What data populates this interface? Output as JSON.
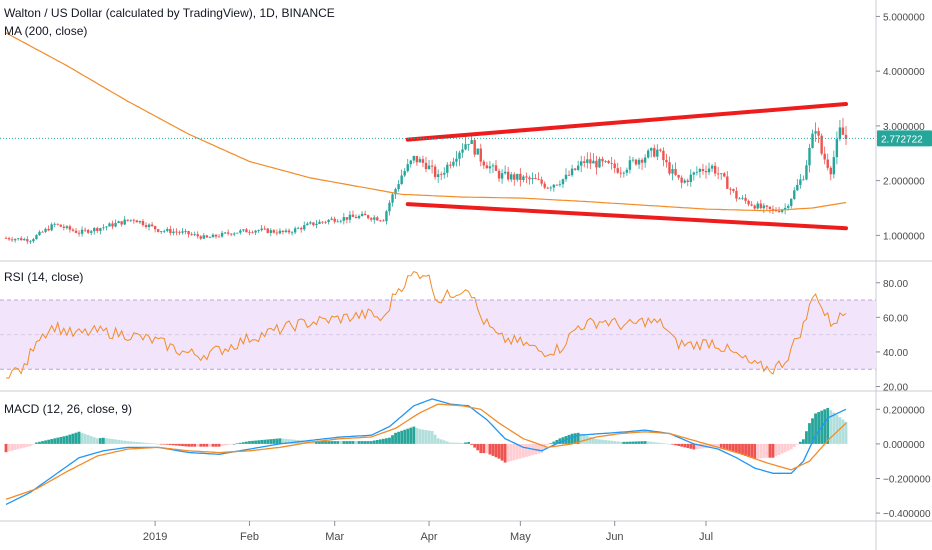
{
  "header": {
    "title": "Walton / US Dollar (calculated by TradingView), 1D, BINANCE",
    "ma_label": "MA (200, close)",
    "rsi_label": "RSI (14, close)",
    "macd_label": "MACD (12, 26, close, 9)"
  },
  "last_price": "2.772722",
  "colors": {
    "up": "#26a69a",
    "down": "#ef5350",
    "ma": "#f28c28",
    "trend": "#ee1c1c",
    "rsi": "#f28c28",
    "rsi_band": "#f1e4fb",
    "macd": "#2196f3",
    "signal": "#f28c28",
    "last_price": "#26a69a"
  },
  "chart_data": [
    {
      "type": "line",
      "panel": "price",
      "y_ticks": [
        "5.000000",
        "4.000000",
        "3.000000",
        "2.000000",
        "1.000000"
      ],
      "ylim": [
        0.55,
        5.3
      ],
      "x_ticks": [
        "2019",
        "Feb",
        "Mar",
        "Apr",
        "May",
        "Jun",
        "Jul"
      ],
      "close_keypoints": [
        [
          0,
          0.95
        ],
        [
          8,
          0.92
        ],
        [
          16,
          1.2
        ],
        [
          24,
          1.05
        ],
        [
          32,
          1.15
        ],
        [
          42,
          1.3
        ],
        [
          50,
          1.1
        ],
        [
          58,
          1.05
        ],
        [
          66,
          0.95
        ],
        [
          74,
          1.05
        ],
        [
          82,
          1.1
        ],
        [
          92,
          1.05
        ],
        [
          100,
          1.2
        ],
        [
          108,
          1.3
        ],
        [
          118,
          1.35
        ],
        [
          124,
          1.3
        ],
        [
          126,
          1.6
        ],
        [
          130,
          2.1
        ],
        [
          134,
          2.4
        ],
        [
          138,
          2.3
        ],
        [
          142,
          2.05
        ],
        [
          148,
          2.5
        ],
        [
          152,
          2.75
        ],
        [
          156,
          2.4
        ],
        [
          162,
          2.1
        ],
        [
          168,
          2.05
        ],
        [
          174,
          2.0
        ],
        [
          178,
          1.9
        ],
        [
          184,
          2.05
        ],
        [
          190,
          2.35
        ],
        [
          196,
          2.3
        ],
        [
          202,
          2.2
        ],
        [
          208,
          2.4
        ],
        [
          214,
          2.55
        ],
        [
          218,
          2.2
        ],
        [
          222,
          1.95
        ],
        [
          228,
          2.2
        ],
        [
          232,
          2.25
        ],
        [
          236,
          2.0
        ],
        [
          240,
          1.7
        ],
        [
          244,
          1.6
        ],
        [
          248,
          1.5
        ],
        [
          252,
          1.45
        ],
        [
          256,
          1.5
        ],
        [
          262,
          2.1
        ],
        [
          266,
          3.0
        ],
        [
          268,
          2.5
        ],
        [
          271,
          2.2
        ],
        [
          274,
          2.9
        ],
        [
          276,
          2.77
        ]
      ],
      "ma200_keypoints": [
        [
          0,
          4.7
        ],
        [
          20,
          4.1
        ],
        [
          40,
          3.45
        ],
        [
          60,
          2.85
        ],
        [
          80,
          2.35
        ],
        [
          100,
          2.05
        ],
        [
          120,
          1.85
        ],
        [
          130,
          1.75
        ],
        [
          150,
          1.7
        ],
        [
          170,
          1.68
        ],
        [
          190,
          1.62
        ],
        [
          210,
          1.55
        ],
        [
          230,
          1.48
        ],
        [
          250,
          1.45
        ],
        [
          265,
          1.5
        ],
        [
          276,
          1.6
        ]
      ],
      "trendlines": [
        {
          "start": [
            132,
            2.75
          ],
          "end": [
            276,
            3.4
          ]
        },
        {
          "start": [
            132,
            1.57
          ],
          "end": [
            276,
            1.13
          ]
        }
      ]
    },
    {
      "type": "line",
      "panel": "rsi",
      "y_ticks": [
        "80.00",
        "60.00",
        "40.00",
        "20.00"
      ],
      "ylim": [
        18,
        92
      ],
      "band": [
        30,
        70
      ],
      "midline": 50,
      "keypoints": [
        [
          0,
          28
        ],
        [
          6,
          30
        ],
        [
          10,
          48
        ],
        [
          16,
          55
        ],
        [
          22,
          50
        ],
        [
          30,
          52
        ],
        [
          40,
          50
        ],
        [
          50,
          46
        ],
        [
          58,
          40
        ],
        [
          64,
          38
        ],
        [
          72,
          42
        ],
        [
          80,
          48
        ],
        [
          88,
          52
        ],
        [
          96,
          56
        ],
        [
          104,
          58
        ],
        [
          112,
          60
        ],
        [
          120,
          62
        ],
        [
          124,
          58
        ],
        [
          128,
          75
        ],
        [
          134,
          85
        ],
        [
          138,
          86
        ],
        [
          142,
          70
        ],
        [
          148,
          75
        ],
        [
          152,
          78
        ],
        [
          156,
          60
        ],
        [
          162,
          48
        ],
        [
          170,
          45
        ],
        [
          176,
          40
        ],
        [
          182,
          42
        ],
        [
          188,
          55
        ],
        [
          196,
          58
        ],
        [
          204,
          55
        ],
        [
          210,
          58
        ],
        [
          216,
          56
        ],
        [
          220,
          45
        ],
        [
          226,
          44
        ],
        [
          232,
          46
        ],
        [
          240,
          38
        ],
        [
          246,
          32
        ],
        [
          252,
          30
        ],
        [
          256,
          35
        ],
        [
          262,
          55
        ],
        [
          266,
          76
        ],
        [
          268,
          65
        ],
        [
          271,
          57
        ],
        [
          274,
          60
        ],
        [
          276,
          63
        ]
      ]
    },
    {
      "type": "line",
      "panel": "macd",
      "y_ticks": [
        "0.200000",
        "0.000000",
        "−0.200000",
        "−0.400000"
      ],
      "ylim": [
        -0.44,
        0.3
      ],
      "macd_keypoints": [
        [
          0,
          -0.35
        ],
        [
          8,
          -0.28
        ],
        [
          16,
          -0.18
        ],
        [
          24,
          -0.08
        ],
        [
          32,
          -0.04
        ],
        [
          40,
          -0.02
        ],
        [
          50,
          -0.02
        ],
        [
          60,
          -0.05
        ],
        [
          70,
          -0.06
        ],
        [
          80,
          -0.03
        ],
        [
          90,
          0.0
        ],
        [
          100,
          0.02
        ],
        [
          110,
          0.04
        ],
        [
          120,
          0.05
        ],
        [
          126,
          0.1
        ],
        [
          134,
          0.22
        ],
        [
          140,
          0.26
        ],
        [
          146,
          0.23
        ],
        [
          152,
          0.22
        ],
        [
          158,
          0.14
        ],
        [
          164,
          0.03
        ],
        [
          170,
          -0.02
        ],
        [
          176,
          -0.04
        ],
        [
          182,
          0.01
        ],
        [
          188,
          0.05
        ],
        [
          196,
          0.06
        ],
        [
          204,
          0.07
        ],
        [
          210,
          0.08
        ],
        [
          218,
          0.06
        ],
        [
          226,
          0.0
        ],
        [
          234,
          -0.03
        ],
        [
          240,
          -0.08
        ],
        [
          246,
          -0.14
        ],
        [
          252,
          -0.17
        ],
        [
          258,
          -0.17
        ],
        [
          262,
          -0.1
        ],
        [
          266,
          0.05
        ],
        [
          270,
          0.15
        ],
        [
          276,
          0.2
        ]
      ],
      "signal_keypoints": [
        [
          0,
          -0.32
        ],
        [
          10,
          -0.26
        ],
        [
          20,
          -0.16
        ],
        [
          30,
          -0.07
        ],
        [
          40,
          -0.03
        ],
        [
          50,
          -0.02
        ],
        [
          60,
          -0.04
        ],
        [
          70,
          -0.05
        ],
        [
          80,
          -0.04
        ],
        [
          90,
          -0.02
        ],
        [
          100,
          0.01
        ],
        [
          110,
          0.03
        ],
        [
          120,
          0.04
        ],
        [
          128,
          0.09
        ],
        [
          136,
          0.18
        ],
        [
          142,
          0.23
        ],
        [
          150,
          0.22
        ],
        [
          156,
          0.2
        ],
        [
          162,
          0.12
        ],
        [
          170,
          0.03
        ],
        [
          178,
          -0.02
        ],
        [
          186,
          0.0
        ],
        [
          194,
          0.04
        ],
        [
          202,
          0.06
        ],
        [
          210,
          0.07
        ],
        [
          218,
          0.06
        ],
        [
          226,
          0.02
        ],
        [
          234,
          -0.02
        ],
        [
          242,
          -0.06
        ],
        [
          250,
          -0.11
        ],
        [
          258,
          -0.15
        ],
        [
          264,
          -0.1
        ],
        [
          270,
          0.02
        ],
        [
          276,
          0.12
        ]
      ]
    }
  ]
}
